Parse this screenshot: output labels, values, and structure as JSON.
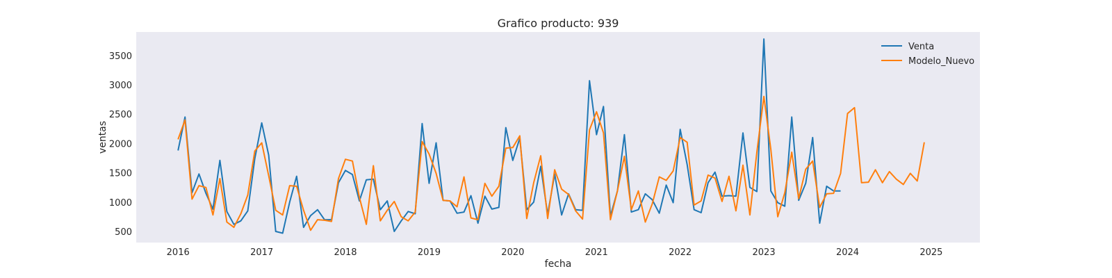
{
  "chart_data": {
    "type": "line",
    "title": "Grafico producto: 939",
    "xlabel": "fecha",
    "ylabel": "ventas",
    "xlim": [
      "2015-07-01",
      "2025-07-31"
    ],
    "ylim": [
      310,
      3900
    ],
    "x_ticks": [
      "2016",
      "2017",
      "2018",
      "2019",
      "2020",
      "2021",
      "2022",
      "2023",
      "2024",
      "2025"
    ],
    "y_ticks": [
      "500",
      "1000",
      "1500",
      "2000",
      "2500",
      "3000",
      "3500"
    ],
    "grid": false,
    "legend_position": "top-right",
    "series": [
      {
        "name": "Venta",
        "color": "#1f77b4",
        "x": [
          "2016-01",
          "2016-02",
          "2016-03",
          "2016-04",
          "2016-05",
          "2016-06",
          "2016-07",
          "2016-08",
          "2016-09",
          "2016-10",
          "2016-11",
          "2016-12",
          "2017-01",
          "2017-02",
          "2017-03",
          "2017-04",
          "2017-05",
          "2017-06",
          "2017-07",
          "2017-08",
          "2017-09",
          "2017-10",
          "2017-11",
          "2017-12",
          "2018-01",
          "2018-02",
          "2018-03",
          "2018-04",
          "2018-05",
          "2018-06",
          "2018-07",
          "2018-08",
          "2018-09",
          "2018-10",
          "2018-11",
          "2018-12",
          "2019-01",
          "2019-02",
          "2019-03",
          "2019-04",
          "2019-05",
          "2019-06",
          "2019-07",
          "2019-08",
          "2019-09",
          "2019-10",
          "2019-11",
          "2019-12",
          "2020-01",
          "2020-02",
          "2020-03",
          "2020-04",
          "2020-05",
          "2020-06",
          "2020-07",
          "2020-08",
          "2020-09",
          "2020-10",
          "2020-11",
          "2020-12",
          "2021-01",
          "2021-02",
          "2021-03",
          "2021-04",
          "2021-05",
          "2021-06",
          "2021-07",
          "2021-08",
          "2021-09",
          "2021-10",
          "2021-11",
          "2021-12",
          "2022-01",
          "2022-02",
          "2022-03",
          "2022-04",
          "2022-05",
          "2022-06",
          "2022-07",
          "2022-08",
          "2022-09",
          "2022-10",
          "2022-11",
          "2022-12",
          "2023-01",
          "2023-02",
          "2023-03",
          "2023-04",
          "2023-05",
          "2023-06",
          "2023-07",
          "2023-08",
          "2023-09",
          "2023-10",
          "2023-11",
          "2023-12"
        ],
        "y": [
          1880,
          2450,
          1160,
          1480,
          1150,
          880,
          1710,
          840,
          620,
          680,
          850,
          1740,
          2350,
          1800,
          500,
          470,
          1000,
          1440,
          570,
          770,
          870,
          700,
          700,
          1330,
          1540,
          1470,
          1020,
          1380,
          1390,
          870,
          1020,
          500,
          680,
          840,
          800,
          2340,
          1320,
          2010,
          1030,
          1020,
          810,
          830,
          1110,
          640,
          1100,
          880,
          910,
          2270,
          1710,
          2090,
          870,
          1000,
          1610,
          790,
          1480,
          780,
          1140,
          870,
          860,
          3070,
          2150,
          2630,
          760,
          1190,
          2150,
          830,
          870,
          1140,
          1040,
          810,
          1290,
          990,
          2240,
          1640,
          870,
          820,
          1330,
          1510,
          1100,
          1110,
          1100,
          2180,
          1250,
          1180,
          3780,
          1190,
          990,
          930,
          2450,
          1030,
          1320,
          2100,
          640,
          1270,
          1190,
          1190
        ]
      },
      {
        "name": "Modelo_Nuevo",
        "color": "#ff7f0e",
        "x": [
          "2016-01",
          "2016-02",
          "2016-03",
          "2016-04",
          "2016-05",
          "2016-06",
          "2016-07",
          "2016-08",
          "2016-09",
          "2016-10",
          "2016-11",
          "2016-12",
          "2017-01",
          "2017-02",
          "2017-03",
          "2017-04",
          "2017-05",
          "2017-06",
          "2017-07",
          "2017-08",
          "2017-09",
          "2017-10",
          "2017-11",
          "2017-12",
          "2018-01",
          "2018-02",
          "2018-03",
          "2018-04",
          "2018-05",
          "2018-06",
          "2018-07",
          "2018-08",
          "2018-09",
          "2018-10",
          "2018-11",
          "2018-12",
          "2019-01",
          "2019-02",
          "2019-03",
          "2019-04",
          "2019-05",
          "2019-06",
          "2019-07",
          "2019-08",
          "2019-09",
          "2019-10",
          "2019-11",
          "2019-12",
          "2020-01",
          "2020-02",
          "2020-03",
          "2020-04",
          "2020-05",
          "2020-06",
          "2020-07",
          "2020-08",
          "2020-09",
          "2020-10",
          "2020-11",
          "2020-12",
          "2021-01",
          "2021-02",
          "2021-03",
          "2021-04",
          "2021-05",
          "2021-06",
          "2021-07",
          "2021-08",
          "2021-09",
          "2021-10",
          "2021-11",
          "2021-12",
          "2022-01",
          "2022-02",
          "2022-03",
          "2022-04",
          "2022-05",
          "2022-06",
          "2022-07",
          "2022-08",
          "2022-09",
          "2022-10",
          "2022-11",
          "2022-12",
          "2023-01",
          "2023-02",
          "2023-03",
          "2023-04",
          "2023-05",
          "2023-06",
          "2023-07",
          "2023-08",
          "2023-09",
          "2023-10",
          "2023-11",
          "2023-12",
          "2024-01",
          "2024-02",
          "2024-03",
          "2024-04",
          "2024-05",
          "2024-06",
          "2024-07",
          "2024-08",
          "2024-09",
          "2024-10",
          "2024-11",
          "2024-12"
        ],
        "y": [
          2070,
          2400,
          1050,
          1280,
          1250,
          780,
          1400,
          660,
          570,
          800,
          1120,
          1870,
          2010,
          1450,
          860,
          780,
          1280,
          1270,
          860,
          520,
          700,
          690,
          670,
          1400,
          1730,
          1700,
          1080,
          620,
          1620,
          680,
          860,
          1010,
          750,
          680,
          830,
          2030,
          1820,
          1490,
          1030,
          1020,
          920,
          1430,
          730,
          700,
          1320,
          1100,
          1270,
          1920,
          1930,
          2130,
          720,
          1330,
          1790,
          720,
          1550,
          1220,
          1130,
          850,
          710,
          2230,
          2540,
          2180,
          700,
          1190,
          1780,
          870,
          1190,
          660,
          970,
          1430,
          1370,
          1530,
          2100,
          2020,
          950,
          1020,
          1460,
          1410,
          1010,
          1440,
          850,
          1630,
          780,
          1850,
          2800,
          1900,
          750,
          1160,
          1850,
          1060,
          1560,
          1700,
          910,
          1140,
          1150,
          1490,
          2510,
          2610,
          1330,
          1340,
          1550,
          1330,
          1520,
          1390,
          1300,
          1490,
          1360,
          2020
        ]
      }
    ]
  }
}
